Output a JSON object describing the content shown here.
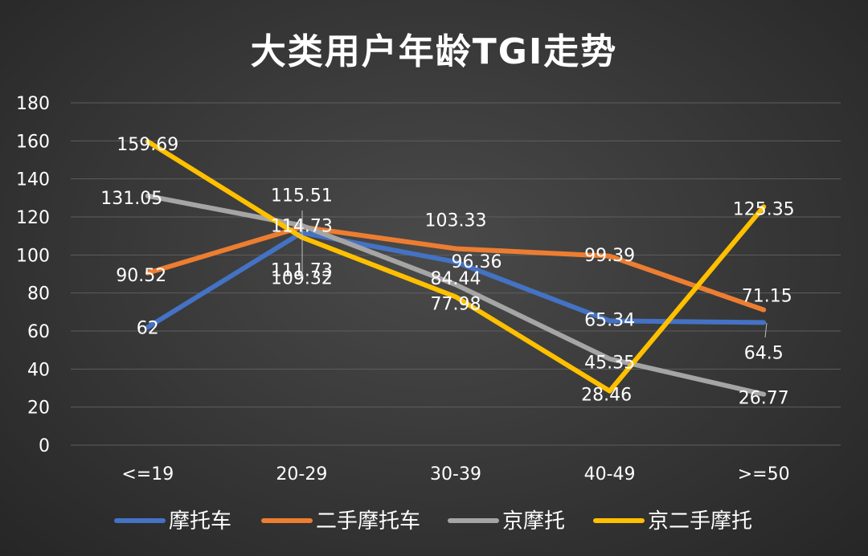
{
  "chart_data": {
    "type": "line",
    "title": "大类用户年龄TGI走势",
    "categories": [
      "<=19",
      "20-29",
      "30-39",
      "40-49",
      ">=50"
    ],
    "ylim": [
      0,
      180
    ],
    "yticks": [
      0,
      20,
      40,
      60,
      80,
      100,
      120,
      140,
      160,
      180
    ],
    "grid": true,
    "legend_position": "bottom",
    "series": [
      {
        "name": "摩托车",
        "color": "#4472c4",
        "values": [
          62,
          111.73,
          96.36,
          65.34,
          64.5
        ],
        "labels": [
          "62",
          "111.73",
          "96.36",
          "65.34",
          "64.5"
        ]
      },
      {
        "name": "二手摩托车",
        "color": "#ed7d31",
        "values": [
          90.52,
          114.73,
          103.33,
          99.39,
          71.15
        ],
        "labels": [
          "90.52",
          "114.73",
          "103.33",
          "99.39",
          "71.15"
        ]
      },
      {
        "name": "京摩托",
        "color": "#a5a5a5",
        "values": [
          131.05,
          115.51,
          84.44,
          45.35,
          26.77
        ],
        "labels": [
          "131.05",
          "115.51",
          "84.44",
          "45.35",
          "26.77"
        ]
      },
      {
        "name": "京二手摩托",
        "color": "#ffc000",
        "values": [
          159.69,
          109.32,
          77.98,
          28.46,
          125.35
        ],
        "labels": [
          "159.69",
          "109.32",
          "77.98",
          "28.46",
          "125.35"
        ]
      }
    ]
  }
}
